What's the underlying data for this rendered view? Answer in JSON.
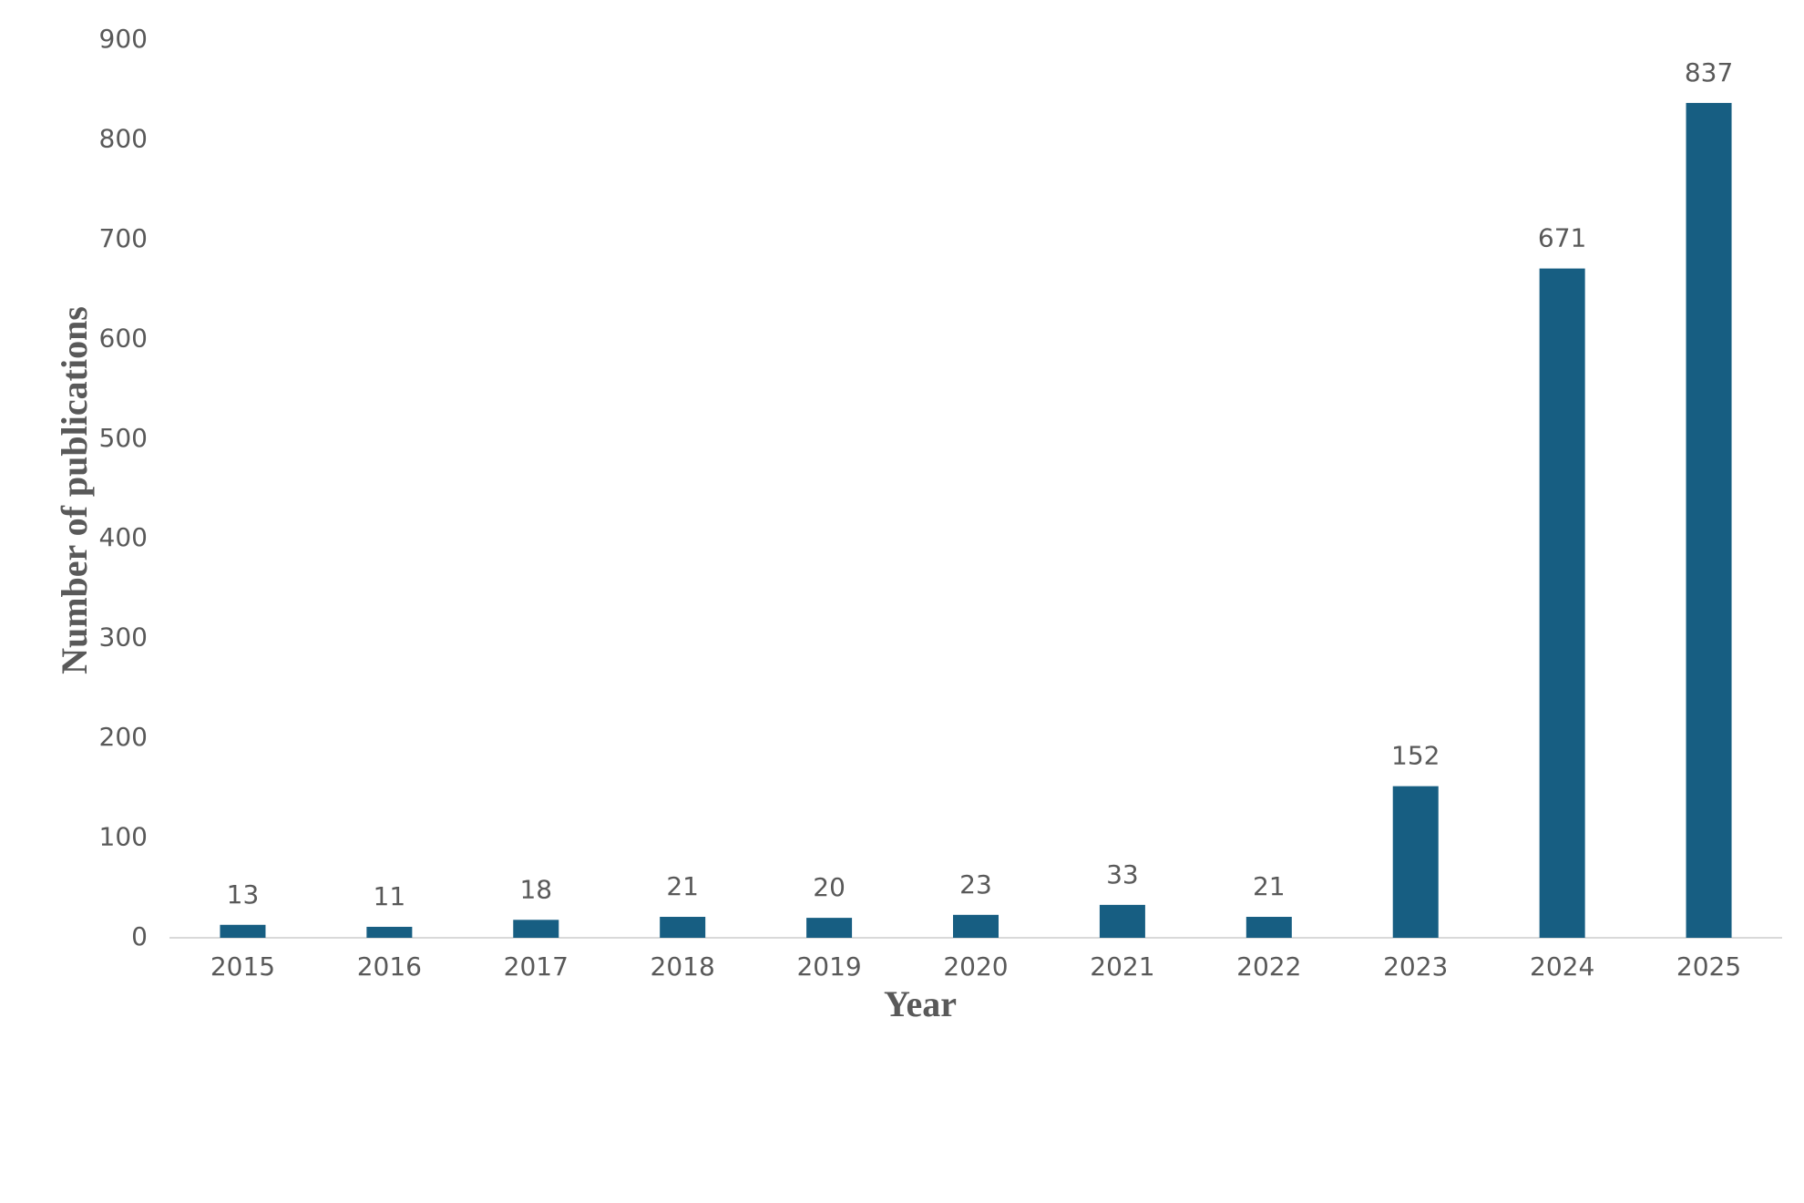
{
  "chart_data": {
    "type": "bar",
    "x_label": "Year",
    "y_label": "Number of publications",
    "categories": [
      "2015",
      "2016",
      "2017",
      "2018",
      "2019",
      "2020",
      "2021",
      "2022",
      "2023",
      "2024",
      "2025"
    ],
    "values": [
      13,
      11,
      18,
      21,
      20,
      23,
      33,
      21,
      152,
      671,
      837
    ],
    "color": "#175e82",
    "ylim": [
      0,
      900
    ],
    "yticks": [
      0,
      100,
      200,
      300,
      400,
      500,
      600,
      700,
      800,
      900
    ],
    "grid": false
  }
}
